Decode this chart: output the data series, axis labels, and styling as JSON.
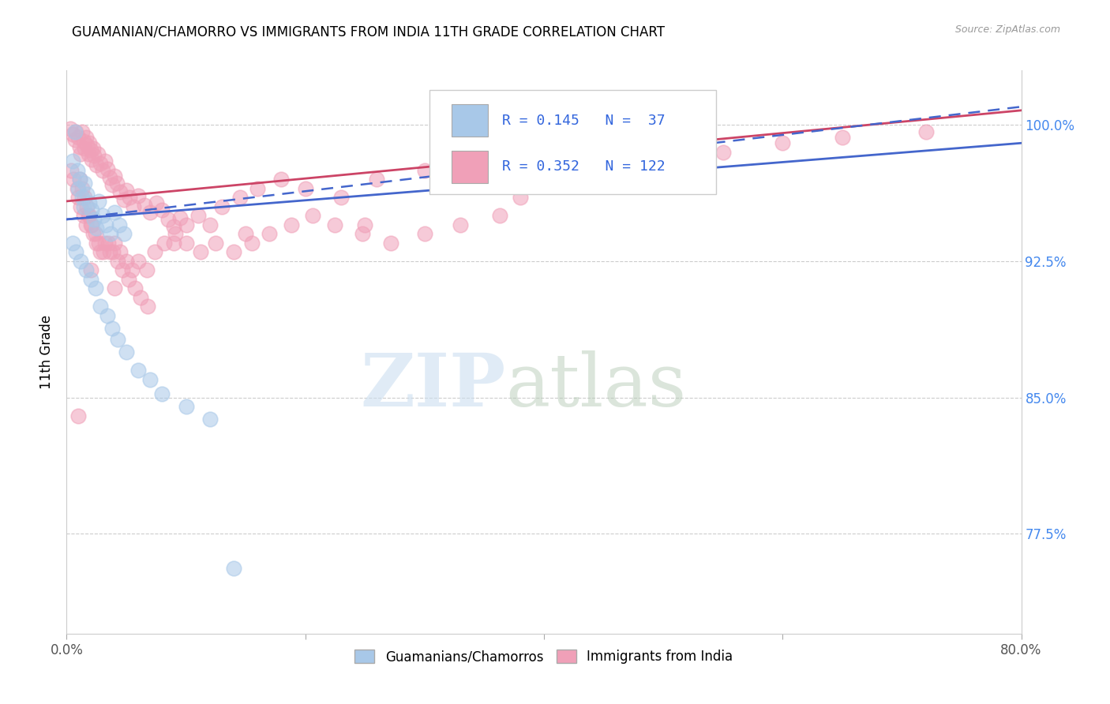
{
  "title": "GUAMANIAN/CHAMORRO VS IMMIGRANTS FROM INDIA 11TH GRADE CORRELATION CHART",
  "source": "Source: ZipAtlas.com",
  "ylabel": "11th Grade",
  "xlim": [
    0.0,
    0.8
  ],
  "ylim": [
    0.72,
    1.03
  ],
  "xticks": [
    0.0,
    0.2,
    0.4,
    0.6,
    0.8
  ],
  "xticklabels": [
    "0.0%",
    "",
    "",
    "",
    "80.0%"
  ],
  "yticks": [
    0.775,
    0.85,
    0.925,
    1.0
  ],
  "yticklabels": [
    "77.5%",
    "85.0%",
    "92.5%",
    "100.0%"
  ],
  "legend_R1": "0.145",
  "legend_N1": "37",
  "legend_R2": "0.352",
  "legend_N2": "122",
  "legend_label1": "Guamanians/Chamorros",
  "legend_label2": "Immigrants from India",
  "color_blue": "#a8c8e8",
  "color_pink": "#f0a0b8",
  "line_color_blue": "#4466cc",
  "line_color_pink": "#cc4466",
  "background_color": "#ffffff",
  "blue_scatter_x": [
    0.005,
    0.007,
    0.009,
    0.01,
    0.011,
    0.013,
    0.014,
    0.015,
    0.017,
    0.019,
    0.021,
    0.023,
    0.025,
    0.027,
    0.03,
    0.033,
    0.037,
    0.04,
    0.044,
    0.048,
    0.005,
    0.008,
    0.012,
    0.016,
    0.02,
    0.024,
    0.028,
    0.034,
    0.038,
    0.043,
    0.05,
    0.06,
    0.07,
    0.08,
    0.1,
    0.12,
    0.14
  ],
  "blue_scatter_y": [
    0.98,
    0.996,
    0.975,
    0.965,
    0.97,
    0.96,
    0.955,
    0.968,
    0.962,
    0.957,
    0.953,
    0.948,
    0.943,
    0.958,
    0.95,
    0.945,
    0.94,
    0.952,
    0.945,
    0.94,
    0.935,
    0.93,
    0.925,
    0.92,
    0.915,
    0.91,
    0.9,
    0.895,
    0.888,
    0.882,
    0.875,
    0.865,
    0.86,
    0.852,
    0.845,
    0.838,
    0.756
  ],
  "pink_scatter_x": [
    0.003,
    0.005,
    0.007,
    0.008,
    0.01,
    0.011,
    0.012,
    0.013,
    0.014,
    0.015,
    0.016,
    0.017,
    0.018,
    0.019,
    0.02,
    0.021,
    0.022,
    0.023,
    0.025,
    0.026,
    0.028,
    0.03,
    0.032,
    0.034,
    0.036,
    0.038,
    0.04,
    0.042,
    0.045,
    0.048,
    0.05,
    0.053,
    0.056,
    0.06,
    0.065,
    0.07,
    0.075,
    0.08,
    0.085,
    0.09,
    0.095,
    0.1,
    0.11,
    0.12,
    0.13,
    0.145,
    0.16,
    0.18,
    0.2,
    0.23,
    0.26,
    0.3,
    0.35,
    0.4,
    0.45,
    0.5,
    0.55,
    0.6,
    0.65,
    0.72,
    0.004,
    0.006,
    0.009,
    0.011,
    0.013,
    0.015,
    0.017,
    0.019,
    0.021,
    0.024,
    0.027,
    0.031,
    0.035,
    0.039,
    0.043,
    0.047,
    0.052,
    0.057,
    0.062,
    0.068,
    0.01,
    0.012,
    0.014,
    0.016,
    0.018,
    0.02,
    0.022,
    0.025,
    0.028,
    0.032,
    0.036,
    0.04,
    0.045,
    0.05,
    0.055,
    0.06,
    0.067,
    0.074,
    0.082,
    0.091,
    0.1,
    0.112,
    0.125,
    0.14,
    0.155,
    0.17,
    0.188,
    0.206,
    0.225,
    0.248,
    0.272,
    0.3,
    0.33,
    0.363,
    0.01,
    0.02,
    0.04,
    0.09,
    0.15,
    0.25,
    0.38,
    0.53
  ],
  "pink_scatter_y": [
    0.998,
    0.995,
    0.992,
    0.996,
    0.993,
    0.988,
    0.984,
    0.996,
    0.991,
    0.987,
    0.993,
    0.989,
    0.984,
    0.99,
    0.986,
    0.981,
    0.987,
    0.983,
    0.978,
    0.984,
    0.979,
    0.975,
    0.98,
    0.976,
    0.971,
    0.967,
    0.972,
    0.968,
    0.963,
    0.959,
    0.964,
    0.96,
    0.955,
    0.961,
    0.956,
    0.952,
    0.957,
    0.953,
    0.948,
    0.944,
    0.949,
    0.945,
    0.95,
    0.945,
    0.955,
    0.96,
    0.965,
    0.97,
    0.965,
    0.96,
    0.97,
    0.975,
    0.98,
    0.985,
    0.99,
    0.988,
    0.985,
    0.99,
    0.993,
    0.996,
    0.975,
    0.97,
    0.965,
    0.97,
    0.965,
    0.96,
    0.955,
    0.95,
    0.945,
    0.94,
    0.935,
    0.93,
    0.935,
    0.93,
    0.925,
    0.92,
    0.915,
    0.91,
    0.905,
    0.9,
    0.96,
    0.955,
    0.95,
    0.945,
    0.95,
    0.945,
    0.94,
    0.935,
    0.93,
    0.935,
    0.93,
    0.935,
    0.93,
    0.925,
    0.92,
    0.925,
    0.92,
    0.93,
    0.935,
    0.94,
    0.935,
    0.93,
    0.935,
    0.93,
    0.935,
    0.94,
    0.945,
    0.95,
    0.945,
    0.94,
    0.935,
    0.94,
    0.945,
    0.95,
    0.84,
    0.92,
    0.91,
    0.935,
    0.94,
    0.945,
    0.96,
    0.97
  ],
  "blue_line_x": [
    0.0,
    0.8
  ],
  "blue_line_y": [
    0.948,
    0.99
  ],
  "pink_line_x": [
    0.0,
    0.8
  ],
  "pink_line_y": [
    0.958,
    1.008
  ],
  "blue_dash_line_x": [
    0.0,
    0.8
  ],
  "blue_dash_line_y": [
    0.948,
    1.01
  ]
}
